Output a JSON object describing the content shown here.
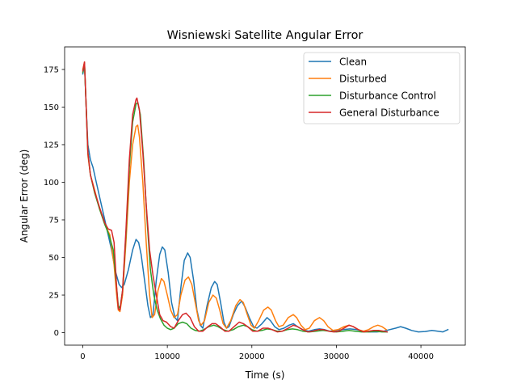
{
  "chart_data": {
    "type": "line",
    "title": "Wisniewski Satellite Angular Error",
    "xlabel": "Time (s)",
    "ylabel": "Angular Error (deg)",
    "xlim": [
      -2150,
      45250
    ],
    "ylim": [
      -8.3,
      190
    ],
    "xticks": [
      0,
      10000,
      20000,
      30000,
      40000
    ],
    "xtick_labels": [
      "0",
      "10000",
      "20000",
      "30000",
      "40000"
    ],
    "yticks": [
      0,
      25,
      50,
      75,
      100,
      125,
      150,
      175
    ],
    "ytick_labels": [
      "0",
      "25",
      "50",
      "75",
      "100",
      "125",
      "150",
      "175"
    ],
    "grid": false,
    "legend_position": "top-right",
    "series": [
      {
        "name": "Clean",
        "color": "#1f77b4",
        "points": [
          [
            0,
            172
          ],
          [
            200,
            178
          ],
          [
            400,
            150
          ],
          [
            600,
            125
          ],
          [
            900,
            115
          ],
          [
            1200,
            110
          ],
          [
            1600,
            100
          ],
          [
            2200,
            85
          ],
          [
            2800,
            70
          ],
          [
            3400,
            55
          ],
          [
            3900,
            40
          ],
          [
            4300,
            32
          ],
          [
            4600,
            30
          ],
          [
            4900,
            32
          ],
          [
            5400,
            42
          ],
          [
            5900,
            55
          ],
          [
            6300,
            62
          ],
          [
            6600,
            60
          ],
          [
            6900,
            52
          ],
          [
            7300,
            35
          ],
          [
            7700,
            18
          ],
          [
            8000,
            10
          ],
          [
            8300,
            12
          ],
          [
            8700,
            35
          ],
          [
            9100,
            52
          ],
          [
            9400,
            57
          ],
          [
            9700,
            55
          ],
          [
            10100,
            40
          ],
          [
            10500,
            20
          ],
          [
            10900,
            10
          ],
          [
            11200,
            8
          ],
          [
            11600,
            30
          ],
          [
            12000,
            48
          ],
          [
            12400,
            53
          ],
          [
            12700,
            50
          ],
          [
            13100,
            35
          ],
          [
            13500,
            15
          ],
          [
            13900,
            5
          ],
          [
            14200,
            3
          ],
          [
            14700,
            18
          ],
          [
            15200,
            30
          ],
          [
            15600,
            34
          ],
          [
            15900,
            32
          ],
          [
            16300,
            20
          ],
          [
            16700,
            7
          ],
          [
            17000,
            3
          ],
          [
            17300,
            4
          ],
          [
            17800,
            12
          ],
          [
            18300,
            18
          ],
          [
            18800,
            21
          ],
          [
            19200,
            17
          ],
          [
            19700,
            10
          ],
          [
            20200,
            4
          ],
          [
            20600,
            3
          ],
          [
            21200,
            6
          ],
          [
            21800,
            10
          ],
          [
            22200,
            8
          ],
          [
            22700,
            4
          ],
          [
            23200,
            2
          ],
          [
            23800,
            3
          ],
          [
            24400,
            5
          ],
          [
            24900,
            6
          ],
          [
            25400,
            4
          ],
          [
            26000,
            2
          ],
          [
            26700,
            1
          ],
          [
            27400,
            2
          ],
          [
            28000,
            2.5
          ],
          [
            28600,
            2
          ],
          [
            29200,
            1
          ],
          [
            30000,
            1.5
          ],
          [
            30800,
            2
          ],
          [
            31600,
            2.5
          ],
          [
            32400,
            2
          ],
          [
            33200,
            1
          ],
          [
            34000,
            0.5
          ],
          [
            34800,
            0.5
          ],
          [
            35600,
            1
          ],
          [
            36300,
            2
          ],
          [
            37000,
            3
          ],
          [
            37600,
            4
          ],
          [
            38200,
            3
          ],
          [
            38900,
            1.5
          ],
          [
            39700,
            0.5
          ],
          [
            40500,
            0.8
          ],
          [
            41300,
            1.5
          ],
          [
            42000,
            1
          ],
          [
            42600,
            0.5
          ],
          [
            43200,
            2
          ]
        ]
      },
      {
        "name": "Disturbed",
        "color": "#ff7f0e",
        "points": [
          [
            0,
            175
          ],
          [
            200,
            180
          ],
          [
            400,
            150
          ],
          [
            600,
            118
          ],
          [
            900,
            105
          ],
          [
            1400,
            95
          ],
          [
            2000,
            82
          ],
          [
            2600,
            72
          ],
          [
            3200,
            65
          ],
          [
            3700,
            45
          ],
          [
            4000,
            25
          ],
          [
            4200,
            15
          ],
          [
            4400,
            14
          ],
          [
            4700,
            25
          ],
          [
            5100,
            60
          ],
          [
            5500,
            100
          ],
          [
            5900,
            125
          ],
          [
            6300,
            137
          ],
          [
            6500,
            138
          ],
          [
            6700,
            130
          ],
          [
            7100,
            100
          ],
          [
            7500,
            60
          ],
          [
            7900,
            25
          ],
          [
            8200,
            10
          ],
          [
            8500,
            12
          ],
          [
            8900,
            28
          ],
          [
            9300,
            36
          ],
          [
            9600,
            34
          ],
          [
            10000,
            25
          ],
          [
            10400,
            15
          ],
          [
            10800,
            10
          ],
          [
            11200,
            12
          ],
          [
            11600,
            25
          ],
          [
            12100,
            35
          ],
          [
            12500,
            37
          ],
          [
            12900,
            32
          ],
          [
            13300,
            20
          ],
          [
            13700,
            8
          ],
          [
            14000,
            5
          ],
          [
            14400,
            8
          ],
          [
            14900,
            20
          ],
          [
            15400,
            25
          ],
          [
            15800,
            23
          ],
          [
            16200,
            15
          ],
          [
            16600,
            6
          ],
          [
            17000,
            3
          ],
          [
            17500,
            8
          ],
          [
            18100,
            18
          ],
          [
            18600,
            22
          ],
          [
            19000,
            20
          ],
          [
            19400,
            13
          ],
          [
            19900,
            5
          ],
          [
            20300,
            3
          ],
          [
            20800,
            8
          ],
          [
            21400,
            15
          ],
          [
            21900,
            17
          ],
          [
            22300,
            15
          ],
          [
            22800,
            8
          ],
          [
            23200,
            4
          ],
          [
            23700,
            5
          ],
          [
            24300,
            10
          ],
          [
            24900,
            12
          ],
          [
            25300,
            10
          ],
          [
            25800,
            5
          ],
          [
            26300,
            2
          ],
          [
            26800,
            3
          ],
          [
            27400,
            8
          ],
          [
            28000,
            10
          ],
          [
            28500,
            8
          ],
          [
            29000,
            4
          ],
          [
            29600,
            1.5
          ],
          [
            30200,
            2
          ],
          [
            30900,
            4
          ],
          [
            31500,
            5
          ],
          [
            32000,
            4
          ],
          [
            32600,
            2
          ],
          [
            33200,
            1
          ],
          [
            33800,
            2
          ],
          [
            34400,
            4
          ],
          [
            34900,
            5
          ],
          [
            35400,
            4
          ],
          [
            35900,
            2
          ]
        ]
      },
      {
        "name": "Disturbance Control",
        "color": "#2ca02c",
        "points": [
          [
            0,
            173
          ],
          [
            200,
            179
          ],
          [
            400,
            150
          ],
          [
            600,
            120
          ],
          [
            900,
            105
          ],
          [
            1400,
            93
          ],
          [
            2000,
            82
          ],
          [
            2600,
            72
          ],
          [
            3100,
            65
          ],
          [
            3600,
            55
          ],
          [
            4000,
            30
          ],
          [
            4200,
            18
          ],
          [
            4400,
            16
          ],
          [
            4700,
            28
          ],
          [
            5100,
            65
          ],
          [
            5500,
            110
          ],
          [
            5900,
            140
          ],
          [
            6300,
            152
          ],
          [
            6500,
            153
          ],
          [
            6800,
            145
          ],
          [
            7200,
            115
          ],
          [
            7600,
            75
          ],
          [
            8000,
            42
          ],
          [
            8400,
            25
          ],
          [
            8800,
            15
          ],
          [
            9200,
            9
          ],
          [
            9600,
            5
          ],
          [
            10000,
            3
          ],
          [
            10400,
            2
          ],
          [
            10800,
            3
          ],
          [
            11300,
            6
          ],
          [
            11800,
            7
          ],
          [
            12300,
            6
          ],
          [
            12800,
            3
          ],
          [
            13300,
            1.5
          ],
          [
            13800,
            1
          ],
          [
            14300,
            2
          ],
          [
            14900,
            4
          ],
          [
            15500,
            5
          ],
          [
            16000,
            4
          ],
          [
            16600,
            2
          ],
          [
            17200,
            1
          ],
          [
            17800,
            2
          ],
          [
            18400,
            4
          ],
          [
            19000,
            5
          ],
          [
            19500,
            4
          ],
          [
            20000,
            2
          ],
          [
            20600,
            1
          ],
          [
            21200,
            1.5
          ],
          [
            21800,
            2.5
          ],
          [
            22400,
            2
          ],
          [
            23000,
            1
          ],
          [
            23600,
            1
          ],
          [
            24200,
            2
          ],
          [
            24800,
            2.5
          ],
          [
            25400,
            2
          ],
          [
            26000,
            1
          ],
          [
            26800,
            0.5
          ],
          [
            27600,
            1
          ],
          [
            28400,
            1.5
          ],
          [
            29200,
            1
          ],
          [
            30000,
            0.5
          ],
          [
            30800,
            1
          ],
          [
            31500,
            1.5
          ],
          [
            32200,
            1
          ],
          [
            33000,
            0.5
          ],
          [
            33800,
            0.5
          ],
          [
            34600,
            1
          ],
          [
            35400,
            0.5
          ],
          [
            36000,
            0.5
          ]
        ]
      },
      {
        "name": "General Disturbance",
        "color": "#d62728",
        "points": [
          [
            0,
            174
          ],
          [
            200,
            180
          ],
          [
            400,
            150
          ],
          [
            600,
            120
          ],
          [
            900,
            105
          ],
          [
            1400,
            94
          ],
          [
            2000,
            83
          ],
          [
            2600,
            73
          ],
          [
            3000,
            69
          ],
          [
            3400,
            68
          ],
          [
            3700,
            60
          ],
          [
            4000,
            30
          ],
          [
            4200,
            16
          ],
          [
            4400,
            15
          ],
          [
            4700,
            28
          ],
          [
            5100,
            68
          ],
          [
            5500,
            115
          ],
          [
            5900,
            145
          ],
          [
            6300,
            155
          ],
          [
            6400,
            156
          ],
          [
            6700,
            148
          ],
          [
            7100,
            120
          ],
          [
            7500,
            85
          ],
          [
            7900,
            55
          ],
          [
            8300,
            38
          ],
          [
            8700,
            25
          ],
          [
            9100,
            12
          ],
          [
            9500,
            8
          ],
          [
            9900,
            7
          ],
          [
            10400,
            4
          ],
          [
            10800,
            3
          ],
          [
            11300,
            8
          ],
          [
            11800,
            12
          ],
          [
            12200,
            13
          ],
          [
            12700,
            10
          ],
          [
            13200,
            4
          ],
          [
            13700,
            1
          ],
          [
            14200,
            1
          ],
          [
            14800,
            4
          ],
          [
            15300,
            6
          ],
          [
            15700,
            6
          ],
          [
            16200,
            4
          ],
          [
            16800,
            1
          ],
          [
            17300,
            1
          ],
          [
            17900,
            4
          ],
          [
            18500,
            7
          ],
          [
            19000,
            6
          ],
          [
            19500,
            4
          ],
          [
            20100,
            1
          ],
          [
            20700,
            1
          ],
          [
            21300,
            3
          ],
          [
            21900,
            3
          ],
          [
            22400,
            2
          ],
          [
            23000,
            0.5
          ],
          [
            23600,
            1
          ],
          [
            24300,
            3
          ],
          [
            24900,
            5
          ],
          [
            25400,
            4
          ],
          [
            26000,
            2
          ],
          [
            26600,
            0.5
          ],
          [
            27200,
            1
          ],
          [
            27900,
            2
          ],
          [
            28500,
            2
          ],
          [
            29100,
            1
          ],
          [
            29700,
            0.5
          ],
          [
            30300,
            1
          ],
          [
            30900,
            3
          ],
          [
            31500,
            5
          ],
          [
            32000,
            4
          ],
          [
            32600,
            2
          ],
          [
            33200,
            0.5
          ],
          [
            33800,
            1
          ],
          [
            34400,
            1.5
          ],
          [
            35000,
            1.5
          ],
          [
            35600,
            1
          ],
          [
            36000,
            0.5
          ]
        ]
      }
    ]
  }
}
